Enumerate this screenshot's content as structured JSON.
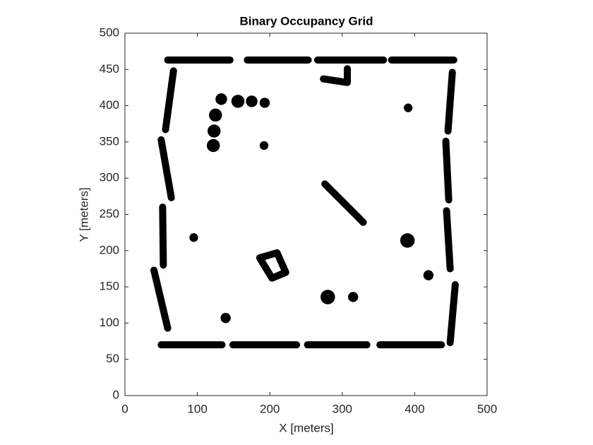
{
  "chart_data": {
    "type": "occupancy",
    "title": "Binary Occupancy Grid",
    "xlabel": "X [meters]",
    "ylabel": "Y [meters]",
    "xlim": [
      0,
      500
    ],
    "ylim": [
      0,
      500
    ],
    "xticks": [
      0,
      100,
      200,
      300,
      400,
      500
    ],
    "yticks": [
      0,
      50,
      100,
      150,
      200,
      250,
      300,
      350,
      400,
      450,
      500
    ],
    "walls": [
      {
        "x": [
          59,
          145
        ],
        "y": [
          463,
          463
        ]
      },
      {
        "x": [
          169,
          253
        ],
        "y": [
          463,
          463
        ]
      },
      {
        "x": [
          266,
          357
        ],
        "y": [
          463,
          463
        ]
      },
      {
        "x": [
          368,
          454
        ],
        "y": [
          463,
          463
        ]
      },
      {
        "x": [
          50,
          134
        ],
        "y": [
          70,
          70
        ]
      },
      {
        "x": [
          149,
          237
        ],
        "y": [
          70,
          70
        ]
      },
      {
        "x": [
          252,
          334
        ],
        "y": [
          70,
          70
        ]
      },
      {
        "x": [
          352,
          437
        ],
        "y": [
          70,
          70
        ]
      },
      {
        "x": [
          67,
          56
        ],
        "y": [
          448,
          367
        ]
      },
      {
        "x": [
          50,
          64
        ],
        "y": [
          353,
          273
        ]
      },
      {
        "x": [
          52,
          53
        ],
        "y": [
          260,
          180
        ]
      },
      {
        "x": [
          40,
          59
        ],
        "y": [
          173,
          93
        ]
      },
      {
        "x": [
          452,
          446
        ],
        "y": [
          446,
          365
        ]
      },
      {
        "x": [
          443,
          447
        ],
        "y": [
          351,
          270
        ]
      },
      {
        "x": [
          444,
          449
        ],
        "y": [
          255,
          175
        ]
      },
      {
        "x": [
          456,
          449
        ],
        "y": [
          153,
          73
        ]
      },
      {
        "x": [
          276,
          329
        ],
        "y": [
          292,
          239
        ]
      },
      {
        "x": [
          274,
          307,
          307
        ],
        "y": [
          437,
          432,
          451
        ]
      },
      {
        "x": [
          186,
          210,
          222,
          203,
          186
        ],
        "y": [
          190,
          197,
          170,
          162,
          190
        ]
      }
    ],
    "blobs": {
      "x": [
        133,
        156,
        175,
        193,
        125,
        123,
        122,
        192,
        391,
        95,
        390,
        419,
        139,
        280,
        315
      ],
      "y": [
        409,
        406,
        406,
        404,
        387,
        365,
        345,
        345,
        397,
        218,
        214,
        166,
        107,
        136,
        136
      ],
      "r": [
        8,
        9,
        8,
        7,
        9,
        9,
        9,
        6,
        6,
        6,
        10,
        7,
        7,
        10,
        7
      ]
    }
  }
}
